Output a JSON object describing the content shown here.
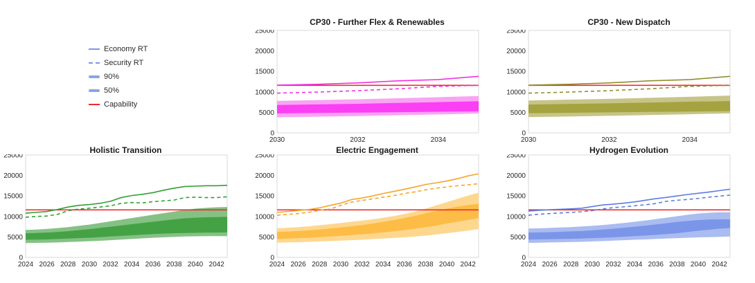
{
  "figure": {
    "background": "#ffffff",
    "capability_color": "#ef2b2d",
    "tick_color": "#262626",
    "plot_border_color": "#d9d9d9"
  },
  "legend": {
    "items": [
      {
        "label": "Economy RT",
        "swatch": "line-solid",
        "color": "#7b96e8"
      },
      {
        "label": "Security RT",
        "swatch": "line-dashed",
        "color": "#7b96e8"
      },
      {
        "label": "90%",
        "swatch": "band",
        "color": "#8aa4ec"
      },
      {
        "label": "50%",
        "swatch": "band",
        "color": "#8aa4ec"
      },
      {
        "label": "Capability",
        "swatch": "line-solid",
        "color": "#ef2b2d"
      }
    ]
  },
  "chart_data": [
    {
      "type": "line",
      "title": "CP30 - Further Flex & Renewables",
      "xlim": [
        2030,
        2035
      ],
      "ylim": [
        0,
        25000
      ],
      "xticks": [
        2030,
        2032,
        2034
      ],
      "yticks": [
        0,
        5000,
        10000,
        15000,
        20000,
        25000
      ],
      "grid": false,
      "colors": {
        "line": "#f032e6",
        "band50": "#fb3ff4",
        "band90": "#f8a4f3",
        "capability": "#ef2b2d"
      },
      "x": [
        2030,
        2031,
        2032,
        2033,
        2034,
        2035
      ],
      "series": {
        "economy_rt": [
          11650,
          11850,
          12200,
          12700,
          13000,
          13800
        ],
        "security_rt": [
          9700,
          9950,
          10300,
          10750,
          11350,
          11600
        ],
        "band90_low": [
          3800,
          3950,
          4100,
          4300,
          4500,
          4700
        ],
        "band90_high": [
          7800,
          8000,
          8200,
          8450,
          8700,
          9000
        ],
        "band50_low": [
          4750,
          4850,
          4950,
          5050,
          5150,
          5250
        ],
        "band50_high": [
          6800,
          6950,
          7100,
          7300,
          7500,
          7700
        ],
        "capability": 11600
      }
    },
    {
      "type": "line",
      "title": "CP30 - New Dispatch",
      "xlim": [
        2030,
        2035
      ],
      "ylim": [
        0,
        25000
      ],
      "xticks": [
        2030,
        2032,
        2034
      ],
      "yticks": [
        0,
        5000,
        10000,
        15000,
        20000,
        25000
      ],
      "grid": false,
      "colors": {
        "line": "#8f8f2d",
        "band50": "#a4a33f",
        "band90": "#c7c488",
        "capability": "#ef2b2d"
      },
      "x": [
        2030,
        2031,
        2032,
        2033,
        2034,
        2035
      ],
      "series": {
        "economy_rt": [
          11650,
          11850,
          12200,
          12700,
          13000,
          13800
        ],
        "security_rt": [
          9700,
          9950,
          10300,
          10750,
          11350,
          11600
        ],
        "band90_low": [
          3850,
          4000,
          4150,
          4350,
          4550,
          4750
        ],
        "band90_high": [
          7900,
          8100,
          8300,
          8550,
          8800,
          9100
        ],
        "band50_low": [
          4800,
          4900,
          5000,
          5100,
          5200,
          5300
        ],
        "band50_high": [
          6900,
          7050,
          7200,
          7400,
          7600,
          7750
        ],
        "capability": 11600
      }
    },
    {
      "type": "line",
      "title": "Holistic Transition",
      "xlim": [
        2024,
        2043
      ],
      "ylim": [
        0,
        25000
      ],
      "xticks": [
        2024,
        2026,
        2028,
        2030,
        2032,
        2034,
        2036,
        2038,
        2040,
        2042
      ],
      "yticks": [
        0,
        5000,
        10000,
        15000,
        20000,
        25000
      ],
      "grid": false,
      "colors": {
        "line": "#2f9e33",
        "band50": "#44a245",
        "band90": "#85c184",
        "capability": "#ef2b2d"
      },
      "x": [
        2024,
        2025,
        2026,
        2027,
        2028,
        2029,
        2030,
        2031,
        2032,
        2033,
        2034,
        2035,
        2036,
        2037,
        2038,
        2039,
        2040,
        2041,
        2042,
        2043
      ],
      "series": {
        "economy_rt": [
          10800,
          11000,
          11200,
          11700,
          12300,
          12700,
          12900,
          13200,
          13700,
          14600,
          15100,
          15400,
          15800,
          16400,
          16900,
          17300,
          17400,
          17500,
          17500,
          17600
        ],
        "security_rt": [
          9800,
          10000,
          10100,
          10500,
          11400,
          11800,
          12000,
          12300,
          12600,
          13200,
          13400,
          13300,
          13600,
          13800,
          14000,
          14600,
          14700,
          14600,
          14600,
          14800
        ],
        "band90_low": [
          3500,
          3550,
          3600,
          3650,
          3750,
          3850,
          3950,
          4050,
          4200,
          4350,
          4500,
          4650,
          4800,
          4900,
          5000,
          5100,
          5150,
          5200,
          5200,
          5200
        ],
        "band90_high": [
          6700,
          6800,
          6950,
          7150,
          7400,
          7700,
          8000,
          8400,
          8800,
          9200,
          9600,
          10000,
          10400,
          10800,
          11200,
          11600,
          11900,
          12100,
          12250,
          12300
        ],
        "band50_low": [
          4300,
          4350,
          4400,
          4500,
          4600,
          4700,
          4800,
          4950,
          5100,
          5250,
          5400,
          5550,
          5700,
          5800,
          5900,
          5950,
          6000,
          6050,
          6050,
          6100
        ],
        "band50_high": [
          5900,
          5950,
          6050,
          6200,
          6400,
          6650,
          6900,
          7200,
          7500,
          7800,
          8100,
          8400,
          8700,
          9000,
          9300,
          9550,
          9700,
          9800,
          9850,
          9900
        ],
        "capability": 11600
      }
    },
    {
      "type": "line",
      "title": "Electric Engagement",
      "xlim": [
        2024,
        2043
      ],
      "ylim": [
        0,
        25000
      ],
      "xticks": [
        2024,
        2026,
        2028,
        2030,
        2032,
        2034,
        2036,
        2038,
        2040,
        2042
      ],
      "yticks": [
        0,
        5000,
        10000,
        15000,
        20000,
        25000
      ],
      "grid": false,
      "colors": {
        "line": "#f6a426",
        "band50": "#fdbc45",
        "band90": "#fed78f",
        "capability": "#ef2b2d"
      },
      "x": [
        2024,
        2025,
        2026,
        2027,
        2028,
        2029,
        2030,
        2031,
        2032,
        2033,
        2034,
        2035,
        2036,
        2037,
        2038,
        2039,
        2040,
        2041,
        2042,
        2043
      ],
      "series": {
        "economy_rt": [
          11000,
          11200,
          11450,
          11700,
          12100,
          12700,
          13250,
          14100,
          14500,
          15000,
          15600,
          16100,
          16650,
          17200,
          17800,
          18200,
          18650,
          19200,
          19900,
          20400
        ],
        "security_rt": [
          10300,
          10500,
          10700,
          11000,
          11500,
          11800,
          12700,
          13500,
          13900,
          14300,
          14700,
          15100,
          15600,
          16000,
          16500,
          16900,
          17200,
          17500,
          17700,
          18000
        ],
        "band90_low": [
          3600,
          3650,
          3700,
          3800,
          3900,
          4000,
          4100,
          4200,
          4300,
          4450,
          4600,
          4750,
          4900,
          5100,
          5300,
          5600,
          5900,
          6200,
          6550,
          6900
        ],
        "band90_high": [
          7100,
          7250,
          7400,
          7600,
          7850,
          8100,
          8400,
          8700,
          9000,
          9300,
          9700,
          10100,
          10600,
          11200,
          11900,
          12700,
          13500,
          14300,
          15100,
          15800
        ],
        "band50_low": [
          4500,
          4600,
          4700,
          4800,
          4950,
          5100,
          5250,
          5450,
          5650,
          5850,
          6100,
          6350,
          6650,
          7000,
          7400,
          7800,
          8250,
          8700,
          9150,
          9600
        ],
        "band50_high": [
          6200,
          6300,
          6450,
          6600,
          6800,
          7050,
          7300,
          7600,
          7900,
          8250,
          8650,
          9100,
          9600,
          10150,
          10750,
          11350,
          11900,
          12400,
          12800,
          13100
        ],
        "capability": 11600
      }
    },
    {
      "type": "line",
      "title": "Hydrogen Evolution",
      "xlim": [
        2024,
        2043
      ],
      "ylim": [
        0,
        25000
      ],
      "xticks": [
        2024,
        2026,
        2028,
        2030,
        2032,
        2034,
        2036,
        2038,
        2040,
        2042
      ],
      "yticks": [
        0,
        5000,
        10000,
        15000,
        20000,
        25000
      ],
      "grid": false,
      "colors": {
        "line": "#5b7ce2",
        "band50": "#7b96e8",
        "band90": "#aabcf0",
        "capability": "#ef2b2d"
      },
      "x": [
        2024,
        2025,
        2026,
        2027,
        2028,
        2029,
        2030,
        2031,
        2032,
        2033,
        2034,
        2035,
        2036,
        2037,
        2038,
        2039,
        2040,
        2041,
        2042,
        2043
      ],
      "series": {
        "economy_rt": [
          11300,
          11500,
          11650,
          11750,
          11850,
          12000,
          12400,
          12800,
          13000,
          13250,
          13550,
          13950,
          14350,
          14650,
          15000,
          15350,
          15650,
          15950,
          16300,
          16650
        ],
        "security_rt": [
          10300,
          10550,
          10700,
          10850,
          11000,
          11150,
          11400,
          11850,
          12150,
          12350,
          12600,
          12850,
          13150,
          13700,
          13950,
          14150,
          14400,
          14700,
          14950,
          15200
        ],
        "band90_low": [
          3550,
          3600,
          3650,
          3700,
          3750,
          3800,
          3900,
          4000,
          4100,
          4200,
          4300,
          4400,
          4500,
          4600,
          4700,
          4800,
          4900,
          4950,
          5000,
          5100
        ],
        "band90_high": [
          7050,
          7100,
          7200,
          7300,
          7400,
          7550,
          7700,
          7900,
          8150,
          8400,
          8700,
          9000,
          9350,
          9700,
          10050,
          10400,
          10700,
          10900,
          11000,
          11000
        ],
        "band50_low": [
          4350,
          4400,
          4450,
          4500,
          4550,
          4600,
          4700,
          4800,
          4900,
          5050,
          5200,
          5350,
          5500,
          5700,
          5900,
          6200,
          6500,
          6750,
          7000,
          7150
        ],
        "band50_high": [
          6050,
          6100,
          6150,
          6250,
          6350,
          6450,
          6600,
          6800,
          7000,
          7250,
          7500,
          7750,
          8050,
          8350,
          8650,
          8900,
          9100,
          9250,
          9300,
          9300
        ],
        "capability": 11600
      }
    }
  ]
}
